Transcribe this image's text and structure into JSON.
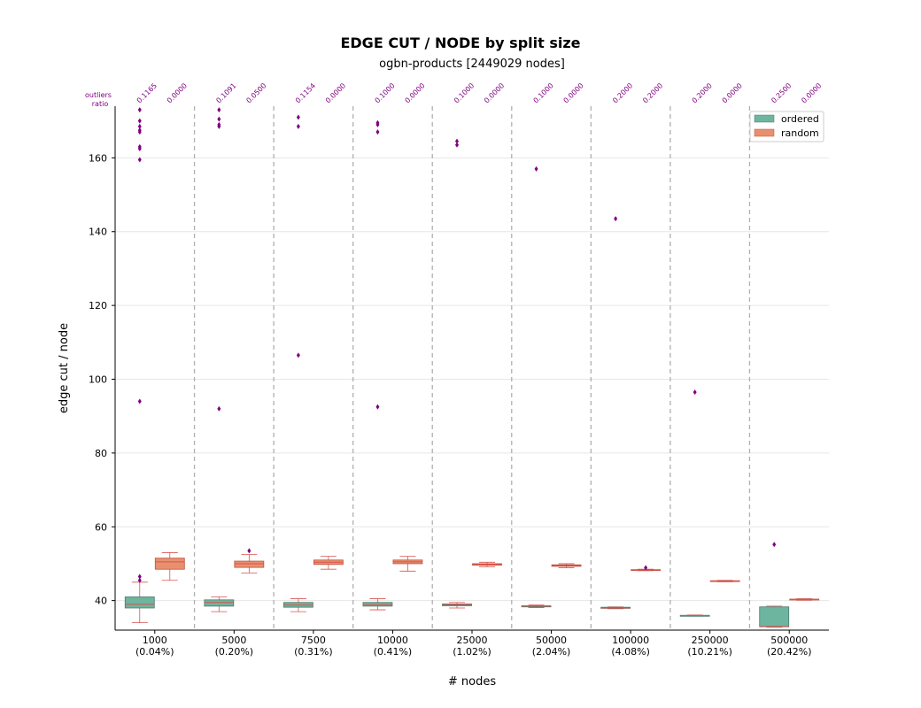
{
  "chart_data": {
    "type": "box",
    "title": "EDGE CUT / NODE by split size",
    "subtitle": "ogbn-products [2449029 nodes]",
    "xlabel": "# nodes",
    "ylabel": "edge cut / node",
    "ylim": [
      32,
      174
    ],
    "yticks": [
      40,
      60,
      80,
      100,
      120,
      140,
      160
    ],
    "outliers_header": "outliers\nratio",
    "legend_position": "top-right",
    "grid": "horizontal",
    "series": [
      {
        "name": "ordered",
        "color": "#6db59f",
        "edge": "#4a7a6a"
      },
      {
        "name": "random",
        "color": "#e8906e",
        "edge": "#c0503a"
      }
    ],
    "groups": [
      {
        "label_line1": "1000",
        "label_line2": "(0.04%)",
        "ordered": {
          "ratio": "0.1165",
          "whislo": 34,
          "q1": 38,
          "median": 39,
          "q3": 41,
          "whishi": 45,
          "outliers": [
            45.5,
            46.5,
            94,
            159.5,
            162.5,
            163,
            167,
            167.5,
            168.5,
            170,
            173
          ]
        },
        "random": {
          "ratio": "0.0000",
          "whislo": 45.5,
          "q1": 48.5,
          "median": 50.5,
          "q3": 51.5,
          "whishi": 53,
          "outliers": []
        }
      },
      {
        "label_line1": "5000",
        "label_line2": "(0.20%)",
        "ordered": {
          "ratio": "0.1091",
          "whislo": 37,
          "q1": 38.5,
          "median": 39.5,
          "q3": 40.2,
          "whishi": 41,
          "outliers": [
            92,
            168.5,
            169,
            170.5,
            173
          ]
        },
        "random": {
          "ratio": "0.0500",
          "whislo": 47.5,
          "q1": 49,
          "median": 50,
          "q3": 50.7,
          "whishi": 52.5,
          "outliers": [
            53.5
          ]
        }
      },
      {
        "label_line1": "7500",
        "label_line2": "(0.31%)",
        "ordered": {
          "ratio": "0.1154",
          "whislo": 37,
          "q1": 38.2,
          "median": 38.8,
          "q3": 39.5,
          "whishi": 40.5,
          "outliers": [
            106.5,
            168.5,
            171
          ]
        },
        "random": {
          "ratio": "0.0000",
          "whislo": 48.5,
          "q1": 49.8,
          "median": 50.4,
          "q3": 51,
          "whishi": 52,
          "outliers": []
        }
      },
      {
        "label_line1": "10000",
        "label_line2": "(0.41%)",
        "ordered": {
          "ratio": "0.1000",
          "whislo": 37.5,
          "q1": 38.5,
          "median": 38.9,
          "q3": 39.5,
          "whishi": 40.5,
          "outliers": [
            92.5,
            167,
            169,
            169.5
          ]
        },
        "random": {
          "ratio": "0.0000",
          "whislo": 48,
          "q1": 50,
          "median": 50.5,
          "q3": 51,
          "whishi": 52,
          "outliers": []
        }
      },
      {
        "label_line1": "25000",
        "label_line2": "(1.02%)",
        "ordered": {
          "ratio": "0.1000",
          "whislo": 38,
          "q1": 38.6,
          "median": 38.8,
          "q3": 39.1,
          "whishi": 39.5,
          "outliers": [
            163.5,
            164.5
          ]
        },
        "random": {
          "ratio": "0.0000",
          "whislo": 49.2,
          "q1": 49.6,
          "median": 49.8,
          "q3": 50,
          "whishi": 50.4,
          "outliers": []
        }
      },
      {
        "label_line1": "50000",
        "label_line2": "(2.04%)",
        "ordered": {
          "ratio": "0.1000",
          "whislo": 38.1,
          "q1": 38.3,
          "median": 38.5,
          "q3": 38.6,
          "whishi": 38.8,
          "outliers": [
            157
          ]
        },
        "random": {
          "ratio": "0.0000",
          "whislo": 48.9,
          "q1": 49.3,
          "median": 49.5,
          "q3": 49.7,
          "whishi": 50,
          "outliers": []
        }
      },
      {
        "label_line1": "100000",
        "label_line2": "(4.08%)",
        "ordered": {
          "ratio": "0.2000",
          "whislo": 37.8,
          "q1": 37.9,
          "median": 38,
          "q3": 38.2,
          "whishi": 38.3,
          "outliers": [
            143.5
          ]
        },
        "random": {
          "ratio": "0.2000",
          "whislo": 48.1,
          "q1": 48.2,
          "median": 48.3,
          "q3": 48.4,
          "whishi": 48.5,
          "outliers": [
            48.9
          ]
        }
      },
      {
        "label_line1": "250000",
        "label_line2": "(10.21%)",
        "ordered": {
          "ratio": "0.2000",
          "whislo": 35.9,
          "q1": 35.9,
          "median": 36,
          "q3": 36,
          "whishi": 36.1,
          "outliers": [
            96.5
          ]
        },
        "random": {
          "ratio": "0.0000",
          "whislo": 45.1,
          "q1": 45.2,
          "median": 45.3,
          "q3": 45.4,
          "whishi": 45.5,
          "outliers": []
        }
      },
      {
        "label_line1": "500000",
        "label_line2": "(20.42%)",
        "ordered": {
          "ratio": "0.2500",
          "whislo": 32.8,
          "q1": 32.9,
          "median": 33,
          "q3": 38.3,
          "whishi": 38.5,
          "outliers": [
            55.2
          ]
        },
        "random": {
          "ratio": "0.0000",
          "whislo": 40.1,
          "q1": 40.2,
          "median": 40.3,
          "q3": 40.4,
          "whishi": 40.5,
          "outliers": []
        }
      }
    ]
  }
}
